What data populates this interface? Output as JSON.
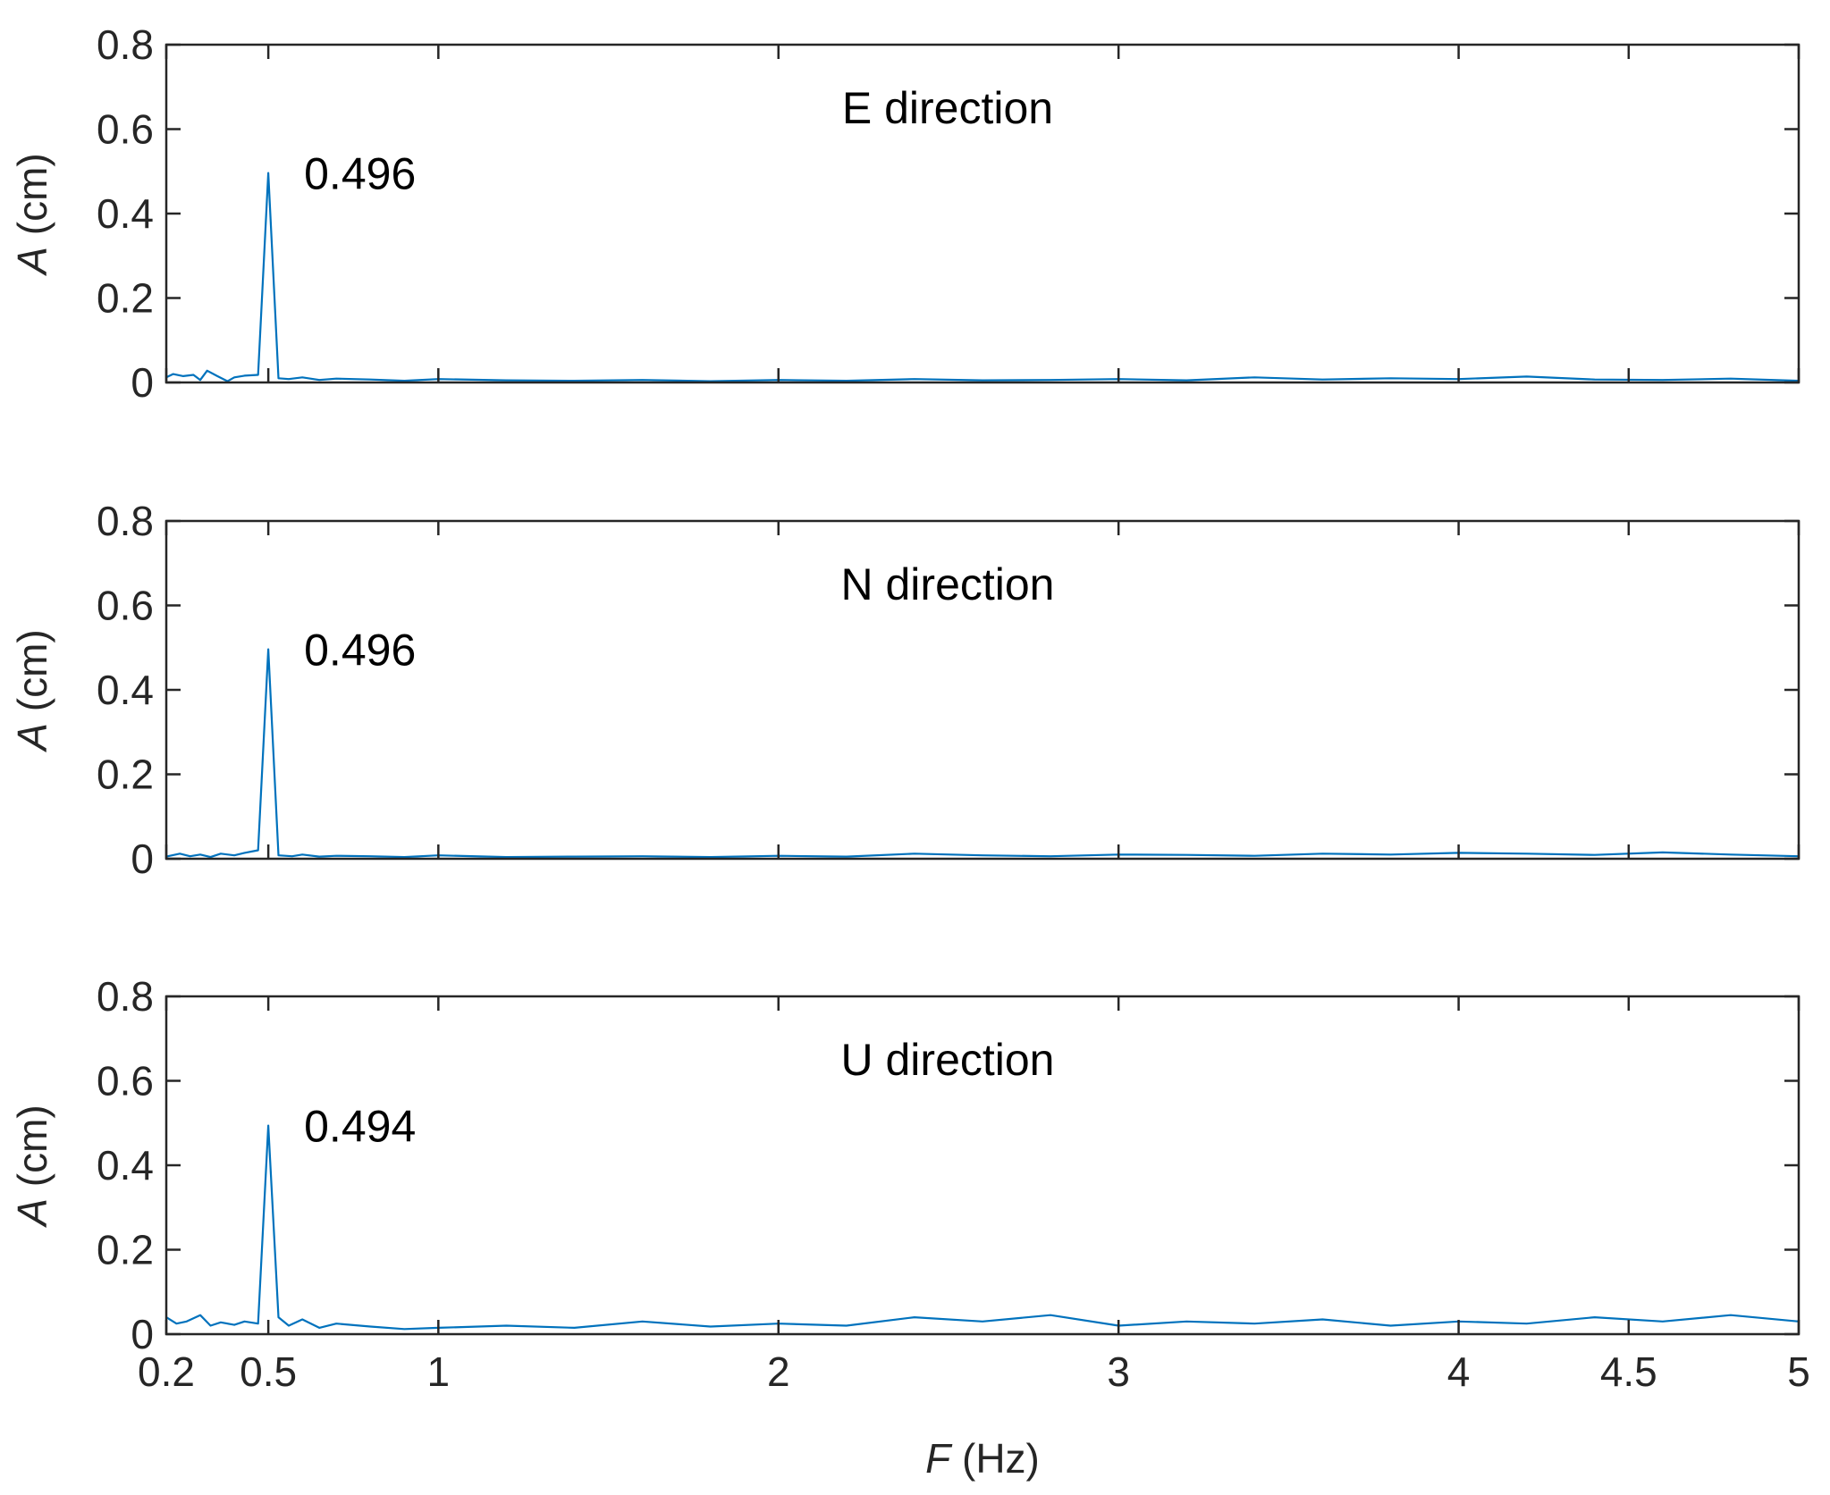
{
  "chart_data": [
    {
      "type": "line",
      "title": "E direction",
      "ylabel_var": "A",
      "ylabel_unit": " (cm)",
      "xlim": [
        0.2,
        5
      ],
      "ylim": [
        0,
        0.8
      ],
      "yticks": [
        0,
        0.2,
        0.4,
        0.6,
        0.8
      ],
      "ytick_labels": [
        "0",
        "0.2",
        "0.4",
        "0.6",
        "0.8"
      ],
      "xticks": [
        0.2,
        0.5,
        1,
        2,
        3,
        4,
        4.5,
        5
      ],
      "show_xtick_labels": false,
      "annotation": {
        "text": "0.496",
        "x": 0.5,
        "y": 0.496
      },
      "series": [
        {
          "color": "#0072BD",
          "x": [
            0.2,
            0.22,
            0.25,
            0.28,
            0.3,
            0.32,
            0.35,
            0.38,
            0.4,
            0.43,
            0.47,
            0.5,
            0.53,
            0.56,
            0.6,
            0.65,
            0.7,
            0.8,
            0.9,
            1.0,
            1.2,
            1.4,
            1.6,
            1.8,
            2.0,
            2.2,
            2.4,
            2.6,
            2.8,
            3.0,
            3.2,
            3.4,
            3.6,
            3.8,
            4.0,
            4.2,
            4.4,
            4.6,
            4.8,
            5.0
          ],
          "y": [
            0.012,
            0.02,
            0.015,
            0.018,
            0.006,
            0.028,
            0.015,
            0.003,
            0.012,
            0.016,
            0.018,
            0.496,
            0.01,
            0.008,
            0.012,
            0.006,
            0.009,
            0.007,
            0.004,
            0.008,
            0.005,
            0.004,
            0.006,
            0.003,
            0.006,
            0.004,
            0.008,
            0.005,
            0.006,
            0.008,
            0.005,
            0.012,
            0.007,
            0.01,
            0.008,
            0.014,
            0.007,
            0.006,
            0.009,
            0.004
          ]
        }
      ]
    },
    {
      "type": "line",
      "title": "N direction",
      "ylabel_var": "A",
      "ylabel_unit": " (cm)",
      "xlim": [
        0.2,
        5
      ],
      "ylim": [
        0,
        0.8
      ],
      "yticks": [
        0,
        0.2,
        0.4,
        0.6,
        0.8
      ],
      "ytick_labels": [
        "0",
        "0.2",
        "0.4",
        "0.6",
        "0.8"
      ],
      "xticks": [
        0.2,
        0.5,
        1,
        2,
        3,
        4,
        4.5,
        5
      ],
      "show_xtick_labels": false,
      "annotation": {
        "text": "0.496",
        "x": 0.5,
        "y": 0.496
      },
      "series": [
        {
          "color": "#0072BD",
          "x": [
            0.2,
            0.24,
            0.27,
            0.3,
            0.33,
            0.36,
            0.4,
            0.43,
            0.47,
            0.5,
            0.53,
            0.57,
            0.6,
            0.65,
            0.7,
            0.8,
            0.9,
            1.0,
            1.2,
            1.4,
            1.6,
            1.8,
            2.0,
            2.2,
            2.4,
            2.6,
            2.8,
            3.0,
            3.2,
            3.4,
            3.6,
            3.8,
            4.0,
            4.2,
            4.4,
            4.6,
            4.8,
            5.0
          ],
          "y": [
            0.005,
            0.012,
            0.006,
            0.01,
            0.004,
            0.012,
            0.008,
            0.014,
            0.02,
            0.496,
            0.008,
            0.006,
            0.01,
            0.005,
            0.007,
            0.006,
            0.004,
            0.008,
            0.004,
            0.005,
            0.006,
            0.004,
            0.007,
            0.005,
            0.012,
            0.008,
            0.006,
            0.01,
            0.009,
            0.007,
            0.012,
            0.01,
            0.014,
            0.012,
            0.009,
            0.015,
            0.01,
            0.006
          ]
        }
      ]
    },
    {
      "type": "line",
      "title": "U direction",
      "ylabel_var": "A",
      "ylabel_unit": " (cm)",
      "xlabel_var": "F",
      "xlabel_unit": " (Hz)",
      "xlim": [
        0.2,
        5
      ],
      "ylim": [
        0,
        0.8
      ],
      "yticks": [
        0,
        0.2,
        0.4,
        0.6,
        0.8
      ],
      "ytick_labels": [
        "0",
        "0.2",
        "0.4",
        "0.6",
        "0.8"
      ],
      "xticks": [
        0.2,
        0.5,
        1,
        2,
        3,
        4,
        4.5,
        5
      ],
      "xtick_labels": [
        "0.2",
        "0.5",
        "1",
        "2",
        "3",
        "4",
        "4.5",
        "5"
      ],
      "show_xtick_labels": true,
      "annotation": {
        "text": "0.494",
        "x": 0.5,
        "y": 0.494
      },
      "series": [
        {
          "color": "#0072BD",
          "x": [
            0.2,
            0.23,
            0.26,
            0.3,
            0.33,
            0.36,
            0.4,
            0.43,
            0.47,
            0.5,
            0.53,
            0.56,
            0.6,
            0.65,
            0.7,
            0.8,
            0.9,
            1.0,
            1.2,
            1.4,
            1.6,
            1.8,
            2.0,
            2.2,
            2.4,
            2.6,
            2.8,
            3.0,
            3.2,
            3.4,
            3.6,
            3.8,
            4.0,
            4.2,
            4.4,
            4.6,
            4.8,
            5.0
          ],
          "y": [
            0.04,
            0.025,
            0.03,
            0.045,
            0.02,
            0.028,
            0.022,
            0.03,
            0.025,
            0.494,
            0.04,
            0.02,
            0.035,
            0.015,
            0.025,
            0.018,
            0.012,
            0.015,
            0.02,
            0.015,
            0.03,
            0.018,
            0.025,
            0.02,
            0.04,
            0.03,
            0.045,
            0.02,
            0.03,
            0.025,
            0.035,
            0.02,
            0.03,
            0.025,
            0.04,
            0.03,
            0.045,
            0.03
          ]
        }
      ]
    }
  ]
}
